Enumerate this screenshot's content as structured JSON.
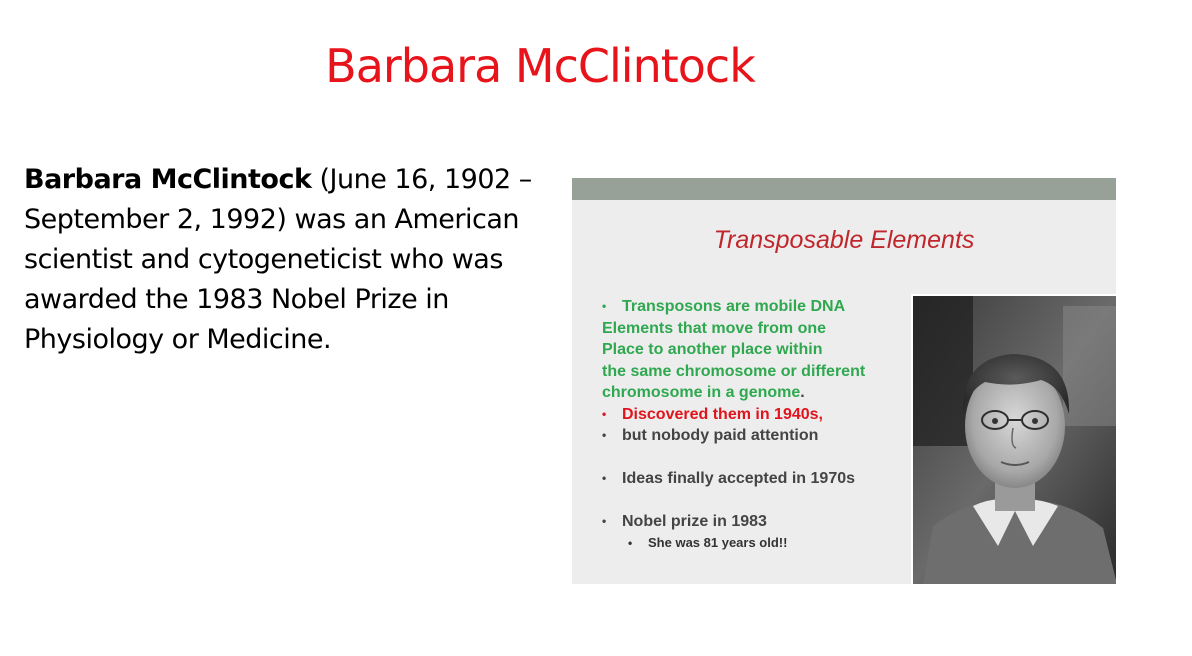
{
  "slide": {
    "title": "Barbara McClintock",
    "bio": {
      "name": "Barbara McClintock",
      "text": " (June 16, 1902 – September 2, 1992) was an American scientist and cytogeneticist who was awarded the 1983 Nobel Prize in Physiology or Medicine."
    }
  },
  "inset": {
    "title": "Transposable Elements",
    "bullets": {
      "b1_line1": "Transposons are mobile DNA",
      "b1_line2": "Elements that move from one",
      "b1_line3": "Place to another place within",
      "b1_line4": "the same chromosome or different",
      "b1_line5": "chromosome in a genome",
      "b1_period": ".",
      "b2": "Discovered them in 1940s,",
      "b3": "but nobody paid attention",
      "b4": "Ideas finally accepted in 1970s",
      "b5": "Nobel prize in 1983",
      "b5_sub": "She was 81 years old!!"
    },
    "bullet_glyph": "•",
    "portrait_icon": "portrait-photo-icon"
  },
  "colors": {
    "title": "#e8141b",
    "inset_title": "#c0272d",
    "green_text": "#2fa84f",
    "red_text": "#e0141c",
    "header_bar": "#97a198"
  }
}
